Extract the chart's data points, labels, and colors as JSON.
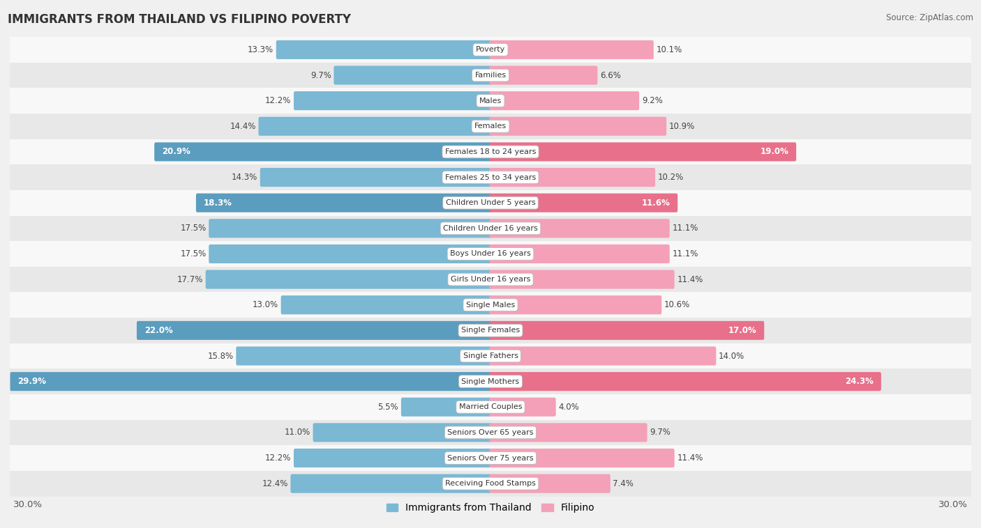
{
  "title": "IMMIGRANTS FROM THAILAND VS FILIPINO POVERTY",
  "source": "Source: ZipAtlas.com",
  "categories": [
    "Poverty",
    "Families",
    "Males",
    "Females",
    "Females 18 to 24 years",
    "Females 25 to 34 years",
    "Children Under 5 years",
    "Children Under 16 years",
    "Boys Under 16 years",
    "Girls Under 16 years",
    "Single Males",
    "Single Females",
    "Single Fathers",
    "Single Mothers",
    "Married Couples",
    "Seniors Over 65 years",
    "Seniors Over 75 years",
    "Receiving Food Stamps"
  ],
  "thailand_values": [
    13.3,
    9.7,
    12.2,
    14.4,
    20.9,
    14.3,
    18.3,
    17.5,
    17.5,
    17.7,
    13.0,
    22.0,
    15.8,
    29.9,
    5.5,
    11.0,
    12.2,
    12.4
  ],
  "filipino_values": [
    10.1,
    6.6,
    9.2,
    10.9,
    19.0,
    10.2,
    11.6,
    11.1,
    11.1,
    11.4,
    10.6,
    17.0,
    14.0,
    24.3,
    4.0,
    9.7,
    11.4,
    7.4
  ],
  "thailand_color": "#7ab8d4",
  "filipino_color": "#f4a0b8",
  "thailand_highlight_color": "#5b9dbf",
  "filipino_highlight_color": "#e8708a",
  "highlight_rows": [
    4,
    6,
    11,
    13
  ],
  "axis_max": 30.0,
  "bg_color": "#f0f0f0",
  "row_bg_even": "#f8f8f8",
  "row_bg_odd": "#e8e8e8",
  "label_fontsize": 8.5,
  "cat_fontsize": 8.0
}
